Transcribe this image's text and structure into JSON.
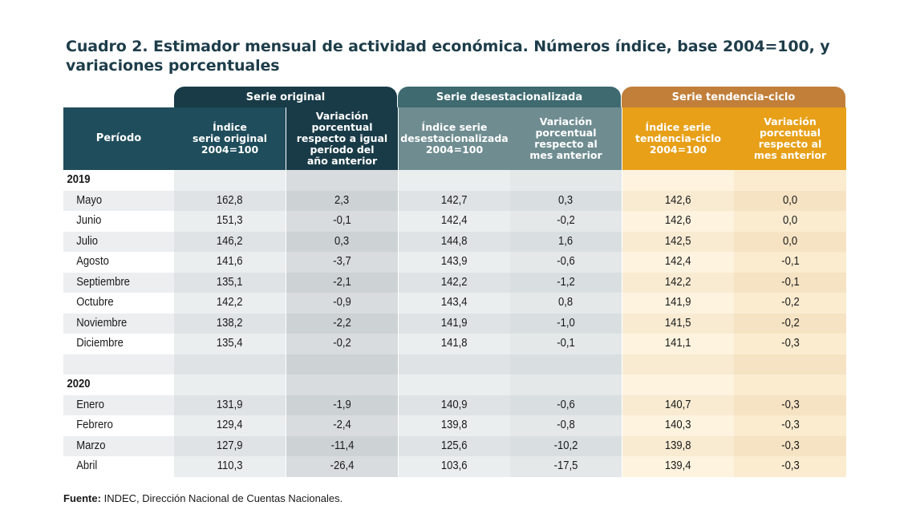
{
  "title": "Cuadro 2. Estimador mensual de actividad económica. Números índice, base 2004=100, y variaciones porcentuales",
  "groups": {
    "original": "Serie original",
    "desestacionalizada": "Serie desestacionalizada",
    "tendencia": "Serie tendencia-ciclo"
  },
  "columns": {
    "period": "Período",
    "c1": "Índice\nserie original\n2004=100",
    "c2": "Variación porcentual\nrespecto a igual\nperíodo del\naño anterior",
    "c3": "Índice serie\ndesestacionalizada\n2004=100",
    "c4": "Variación\nporcentual\nrespecto al\nmes anterior",
    "c5": "Índice serie\ntendencia-ciclo\n2004=100",
    "c6": "Variación\nporcentual\nrespecto al\nmes anterior"
  },
  "rows": [
    {
      "type": "year",
      "label": "2019"
    },
    {
      "type": "month",
      "label": "Mayo",
      "v": [
        "162,8",
        "2,3",
        "142,7",
        "0,3",
        "142,6",
        "0,0"
      ]
    },
    {
      "type": "month",
      "label": "Junio",
      "v": [
        "151,3",
        "-0,1",
        "142,4",
        "-0,2",
        "142,6",
        "0,0"
      ]
    },
    {
      "type": "month",
      "label": "Julio",
      "v": [
        "146,2",
        "0,3",
        "144,8",
        "1,6",
        "142,5",
        "0,0"
      ]
    },
    {
      "type": "month",
      "label": "Agosto",
      "v": [
        "141,6",
        "-3,7",
        "143,9",
        "-0,6",
        "142,4",
        "-0,1"
      ]
    },
    {
      "type": "month",
      "label": "Septiembre",
      "v": [
        "135,1",
        "-2,1",
        "142,2",
        "-1,2",
        "142,2",
        "-0,1"
      ]
    },
    {
      "type": "month",
      "label": "Octubre",
      "v": [
        "142,2",
        "-0,9",
        "143,4",
        "0,8",
        "141,9",
        "-0,2"
      ]
    },
    {
      "type": "month",
      "label": "Noviembre",
      "v": [
        "138,2",
        "-2,2",
        "141,9",
        "-1,0",
        "141,5",
        "-0,2"
      ]
    },
    {
      "type": "month",
      "label": "Diciembre",
      "v": [
        "135,4",
        "-0,2",
        "141,8",
        "-0,1",
        "141,1",
        "-0,3"
      ]
    },
    {
      "type": "blank",
      "label": ""
    },
    {
      "type": "year",
      "label": "2020"
    },
    {
      "type": "month",
      "label": "Enero",
      "v": [
        "131,9",
        "-1,9",
        "140,9",
        "-0,6",
        "140,7",
        "-0,3"
      ]
    },
    {
      "type": "month",
      "label": "Febrero",
      "v": [
        "129,4",
        "-2,4",
        "139,8",
        "-0,8",
        "140,3",
        "-0,3"
      ]
    },
    {
      "type": "month",
      "label": "Marzo",
      "v": [
        "127,9",
        "-11,4",
        "125,6",
        "-10,2",
        "139,8",
        "-0,3"
      ]
    },
    {
      "type": "month",
      "label": "Abril",
      "v": [
        "110,3",
        "-26,4",
        "103,6",
        "-17,5",
        "139,4",
        "-0,3"
      ]
    }
  ],
  "source": {
    "label": "Fuente:",
    "text": "INDEC, Dirección Nacional de Cuentas Nacionales."
  }
}
